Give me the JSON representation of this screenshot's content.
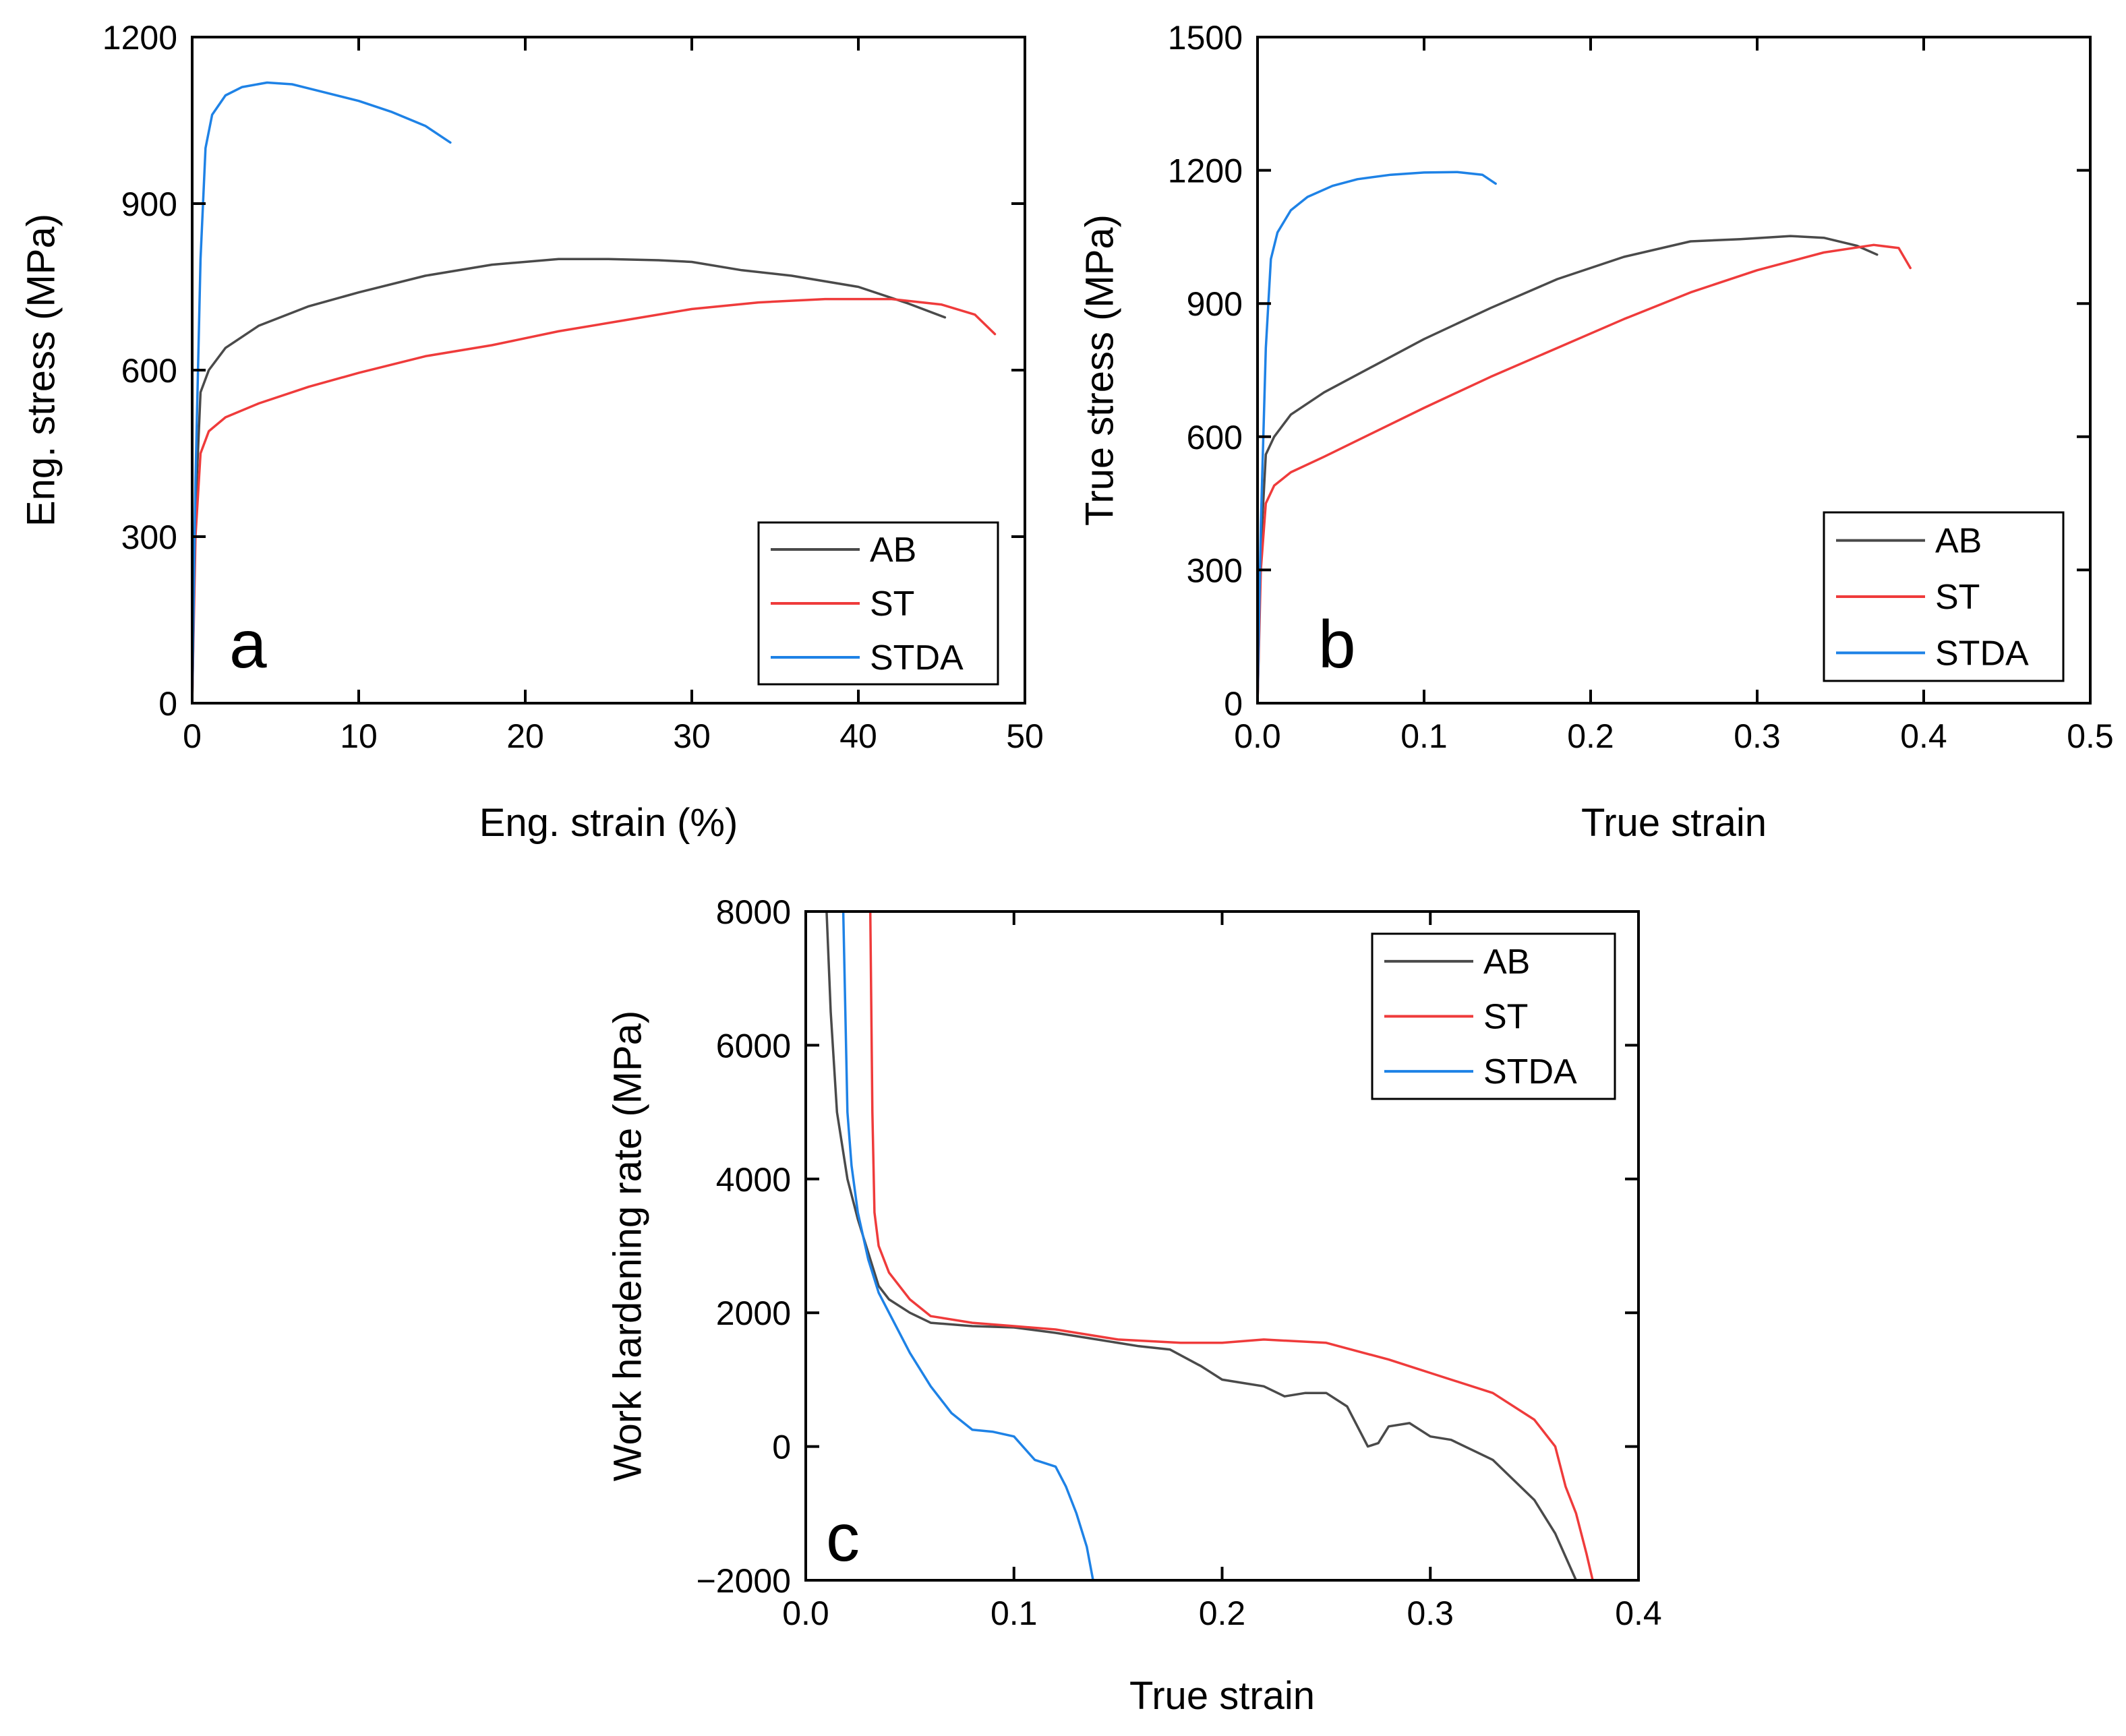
{
  "colors": {
    "AB": "#4a4a4a",
    "ST": "#ef3b3b",
    "STDA": "#1e82e6"
  },
  "chart_data": [
    {
      "panel": "a",
      "type": "line",
      "title": "",
      "xlabel": "Eng. strain (%)",
      "ylabel": "Eng. stress (MPa)",
      "xlim": [
        0,
        50
      ],
      "ylim": [
        0,
        1200
      ],
      "xticks": [
        0,
        10,
        20,
        30,
        40,
        50
      ],
      "yticks": [
        0,
        300,
        600,
        900,
        1200
      ],
      "xtick_labels": [
        "0",
        "10",
        "20",
        "30",
        "40",
        "50"
      ],
      "ytick_labels": [
        "0",
        "300",
        "600",
        "900",
        "1200"
      ],
      "legend": [
        "AB",
        "ST",
        "STDA"
      ],
      "legend_position": "bottom-right",
      "series": [
        {
          "name": "AB",
          "x": [
            0,
            0.2,
            0.5,
            1,
            2,
            4,
            7,
            10,
            14,
            18,
            22,
            25,
            28,
            30,
            33,
            36,
            40,
            43,
            45.2
          ],
          "y": [
            0,
            350,
            560,
            600,
            640,
            680,
            715,
            740,
            770,
            790,
            800,
            800,
            798,
            795,
            780,
            770,
            750,
            720,
            695
          ]
        },
        {
          "name": "ST",
          "x": [
            0,
            0.2,
            0.5,
            1,
            2,
            4,
            7,
            10,
            14,
            18,
            22,
            26,
            30,
            34,
            38,
            42,
            45,
            47,
            48.2
          ],
          "y": [
            0,
            300,
            450,
            490,
            515,
            540,
            570,
            595,
            625,
            645,
            670,
            690,
            710,
            722,
            728,
            728,
            718,
            700,
            665
          ]
        },
        {
          "name": "STDA",
          "x": [
            0,
            0.2,
            0.5,
            0.8,
            1.2,
            2,
            3,
            4.5,
            6,
            8,
            10,
            12,
            14,
            15.5
          ],
          "y": [
            0,
            400,
            800,
            1000,
            1060,
            1095,
            1110,
            1118,
            1115,
            1100,
            1085,
            1065,
            1040,
            1010
          ]
        }
      ]
    },
    {
      "panel": "b",
      "type": "line",
      "title": "",
      "xlabel": "True strain",
      "ylabel": "True stress (MPa)",
      "xlim": [
        0,
        0.5
      ],
      "ylim": [
        0,
        1500
      ],
      "xticks": [
        0,
        0.1,
        0.2,
        0.3,
        0.4,
        0.5
      ],
      "yticks": [
        0,
        300,
        600,
        900,
        1200,
        1500
      ],
      "xtick_labels": [
        "0.0",
        "0.1",
        "0.2",
        "0.3",
        "0.4",
        "0.5"
      ],
      "ytick_labels": [
        "0",
        "300",
        "600",
        "900",
        "1200",
        "1500"
      ],
      "legend": [
        "AB",
        "ST",
        "STDA"
      ],
      "legend_position": "bottom-right",
      "series": [
        {
          "name": "AB",
          "x": [
            0,
            0.002,
            0.005,
            0.01,
            0.02,
            0.04,
            0.07,
            0.1,
            0.14,
            0.18,
            0.22,
            0.26,
            0.29,
            0.32,
            0.34,
            0.36,
            0.372
          ],
          "y": [
            0,
            350,
            560,
            600,
            650,
            700,
            760,
            820,
            890,
            955,
            1005,
            1040,
            1045,
            1052,
            1048,
            1030,
            1010
          ]
        },
        {
          "name": "ST",
          "x": [
            0,
            0.002,
            0.005,
            0.01,
            0.02,
            0.04,
            0.07,
            0.1,
            0.14,
            0.18,
            0.22,
            0.26,
            0.3,
            0.34,
            0.37,
            0.385,
            0.392
          ],
          "y": [
            0,
            300,
            450,
            490,
            520,
            555,
            610,
            665,
            735,
            800,
            865,
            925,
            975,
            1015,
            1032,
            1025,
            980
          ]
        },
        {
          "name": "STDA",
          "x": [
            0,
            0.002,
            0.005,
            0.008,
            0.012,
            0.02,
            0.03,
            0.045,
            0.06,
            0.08,
            0.1,
            0.12,
            0.135,
            0.143
          ],
          "y": [
            0,
            400,
            800,
            1000,
            1060,
            1110,
            1140,
            1165,
            1180,
            1190,
            1195,
            1196,
            1190,
            1170
          ]
        }
      ]
    },
    {
      "panel": "c",
      "type": "line",
      "title": "",
      "xlabel": "True strain",
      "ylabel": "Work hardening rate (MPa)",
      "xlim": [
        0,
        0.4
      ],
      "ylim": [
        -2000,
        8000
      ],
      "xticks": [
        0,
        0.1,
        0.2,
        0.3,
        0.4
      ],
      "yticks": [
        -2000,
        0,
        2000,
        4000,
        6000,
        8000
      ],
      "xtick_labels": [
        "0.0",
        "0.1",
        "0.2",
        "0.3",
        "0.4"
      ],
      "ytick_labels": [
        "−2000",
        "0",
        "2000",
        "4000",
        "6000",
        "8000"
      ],
      "legend": [
        "AB",
        "ST",
        "STDA"
      ],
      "legend_position": "top-right",
      "series": [
        {
          "name": "AB",
          "x": [
            0.01,
            0.012,
            0.015,
            0.02,
            0.025,
            0.03,
            0.035,
            0.04,
            0.05,
            0.06,
            0.08,
            0.1,
            0.12,
            0.14,
            0.16,
            0.175,
            0.19,
            0.2,
            0.21,
            0.22,
            0.23,
            0.24,
            0.25,
            0.26,
            0.27,
            0.275,
            0.28,
            0.29,
            0.3,
            0.31,
            0.33,
            0.35,
            0.36,
            0.37
          ],
          "y": [
            8000,
            6500,
            5000,
            4000,
            3400,
            2900,
            2400,
            2200,
            2000,
            1850,
            1800,
            1780,
            1700,
            1600,
            1500,
            1450,
            1200,
            1000,
            950,
            900,
            750,
            800,
            800,
            600,
            0,
            50,
            300,
            350,
            150,
            100,
            -200,
            -800,
            -1300,
            -2000
          ]
        },
        {
          "name": "ST",
          "x": [
            0.031,
            0.032,
            0.033,
            0.035,
            0.04,
            0.05,
            0.06,
            0.08,
            0.1,
            0.12,
            0.15,
            0.18,
            0.2,
            0.22,
            0.25,
            0.28,
            0.3,
            0.33,
            0.35,
            0.36,
            0.365,
            0.37,
            0.375,
            0.378
          ],
          "y": [
            8000,
            5000,
            3500,
            3000,
            2600,
            2200,
            1950,
            1850,
            1800,
            1750,
            1600,
            1550,
            1550,
            1600,
            1550,
            1300,
            1100,
            800,
            400,
            0,
            -600,
            -1000,
            -1600,
            -2000
          ]
        },
        {
          "name": "STDA",
          "x": [
            0.018,
            0.019,
            0.02,
            0.022,
            0.025,
            0.03,
            0.035,
            0.04,
            0.05,
            0.06,
            0.07,
            0.08,
            0.09,
            0.1,
            0.11,
            0.12,
            0.125,
            0.13,
            0.135,
            0.138
          ],
          "y": [
            8000,
            6500,
            5000,
            4200,
            3500,
            2800,
            2300,
            2000,
            1400,
            900,
            500,
            250,
            220,
            150,
            -200,
            -300,
            -600,
            -1000,
            -1500,
            -2000
          ]
        }
      ]
    }
  ]
}
